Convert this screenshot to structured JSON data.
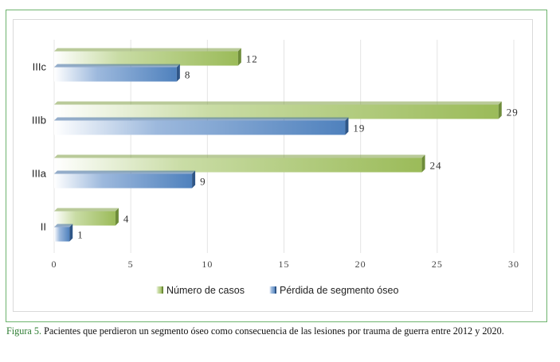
{
  "chart_data": {
    "type": "bar",
    "orientation": "horizontal",
    "categories": [
      "II",
      "IIIa",
      "IIIb",
      "IIIc"
    ],
    "series": [
      {
        "name": "Número de casos",
        "values": [
          4,
          24,
          29,
          12
        ],
        "color": "#9bbb59"
      },
      {
        "name": "Pérdida de segmento óseo",
        "values": [
          1,
          9,
          19,
          8
        ],
        "color": "#4f81bd"
      }
    ],
    "xlim": [
      0,
      30
    ],
    "xticks": [
      "0",
      "5",
      "10",
      "15",
      "20",
      "25",
      "30"
    ],
    "grid": true,
    "legend": "bottom"
  },
  "caption": {
    "label": "Figura 5.",
    "text": " Pacientes que perdieron un segmento óseo como consecuencia de las lesiones por trauma de guerra entre 2012 y 2020."
  }
}
